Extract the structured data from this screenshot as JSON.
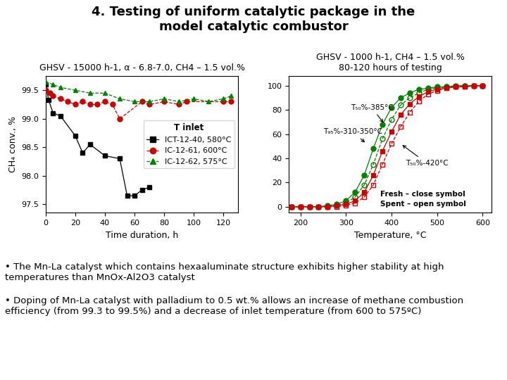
{
  "title": "4. Testing of uniform catalytic package in the\nmodel catalytic combustor",
  "annotations": [
    "• The Mn-La catalyst which contains hexaaluminate structure exhibits higher stability at high temperatures than MnOx-Al2O3 catalyst",
    "• Doping of Mn-La catalyst with palladium to 0.5 wt.% allows an increase of methane combustion efficiency (from 99.3 to 99.5%) and a decrease of inlet temperature (from 600 to 575ºC)"
  ],
  "chart_data": [
    {
      "type": "line",
      "subtitle": "GHSV - 15000 h-1, α - 6.8-7.0, CH4 – 1.5 vol.%",
      "x_label": "Time duration, h",
      "y_label": "CH₄ conv., %",
      "xlim": [
        0,
        130
      ],
      "ylim": [
        97.35,
        99.75
      ],
      "xticks": [
        0,
        20,
        40,
        60,
        80,
        100,
        120
      ],
      "yticks": [
        97.5,
        {
          "value": 98.0,
          "label": "98.0"
        },
        98.5,
        {
          "value": 99.0,
          "label": "99.0"
        },
        99.5
      ],
      "legend": "center right",
      "legend_title": "T inlet",
      "series": [
        {
          "name": "ICT-12-40, 580°C",
          "color": "black",
          "marker": "square",
          "line_style": "solid",
          "x": [
            0,
            2,
            5,
            10,
            20,
            25,
            30,
            40,
            50,
            55,
            60,
            65,
            70
          ],
          "values": [
            99.6,
            99.33,
            99.1,
            99.05,
            98.7,
            98.4,
            98.55,
            98.35,
            98.3,
            97.65,
            97.65,
            97.75,
            97.8
          ]
        },
        {
          "name": "IC-12-61, 600°C",
          "color": "#cc0000",
          "marker": "circle",
          "line_style": "dashed",
          "x": [
            0,
            3,
            5,
            10,
            15,
            20,
            25,
            30,
            35,
            40,
            45,
            50,
            65,
            70,
            80,
            90,
            95,
            120,
            125
          ],
          "values": [
            99.5,
            99.45,
            99.4,
            99.35,
            99.3,
            99.25,
            99.3,
            99.25,
            99.25,
            99.3,
            99.25,
            99.0,
            99.3,
            99.25,
            99.3,
            99.25,
            99.3,
            99.3,
            99.3
          ]
        },
        {
          "name": "IC-12-62, 575°C",
          "color": "#008000",
          "marker": "triangle",
          "line_style": "dashed",
          "x": [
            0,
            5,
            10,
            20,
            30,
            40,
            50,
            60,
            70,
            80,
            90,
            100,
            110,
            120,
            125
          ],
          "values": [
            99.65,
            99.6,
            99.55,
            99.5,
            99.45,
            99.45,
            99.35,
            99.3,
            99.3,
            99.35,
            99.3,
            99.35,
            99.3,
            99.35,
            99.4
          ]
        }
      ]
    },
    {
      "type": "line",
      "subtitle": "GHSV - 1000 h-1, CH4 – 1.5 vol.%\n80-120 hours of testing",
      "x_label": "Temperature, °C",
      "xlim": [
        175,
        620
      ],
      "ylim": [
        -5,
        108
      ],
      "xticks": [
        200,
        300,
        400,
        500,
        600
      ],
      "yticks": [
        0,
        20,
        40,
        60,
        80,
        100
      ],
      "x": [
        180,
        200,
        220,
        240,
        260,
        280,
        300,
        320,
        340,
        360,
        380,
        400,
        420,
        440,
        460,
        480,
        500,
        520,
        540,
        560,
        580,
        600
      ],
      "series": [
        {
          "color": "#008000",
          "marker": "circle",
          "line_style": "solid",
          "values": [
            0,
            0,
            0,
            0,
            1,
            2,
            5,
            12,
            26,
            48,
            68,
            82,
            90,
            94,
            97,
            98,
            99,
            99,
            100,
            100,
            100,
            100
          ]
        },
        {
          "color": "#008000",
          "marker": "open circle",
          "line_style": "dashed",
          "values": [
            0,
            0,
            0,
            0,
            0,
            1,
            3,
            8,
            18,
            35,
            56,
            72,
            84,
            90,
            94,
            97,
            98,
            99,
            99,
            100,
            100,
            100
          ]
        },
        {
          "color": "#cc0000",
          "marker": "square",
          "line_style": "solid",
          "values": [
            0,
            0,
            0,
            0,
            0,
            1,
            2,
            5,
            12,
            26,
            46,
            62,
            76,
            85,
            91,
            95,
            97,
            98,
            99,
            99,
            100,
            100
          ]
        },
        {
          "color": "#cc0000",
          "marker": "open square",
          "line_style": "dashed",
          "values": [
            0,
            0,
            0,
            0,
            0,
            0,
            1,
            3,
            8,
            18,
            35,
            52,
            66,
            78,
            87,
            93,
            96,
            98,
            99,
            99,
            100,
            100
          ]
        }
      ],
      "annotations": [
        {
          "text": "T₅₀%-385°C",
          "x": 385,
          "y": 68
        },
        {
          "text": "T₉₅%-310-350°C",
          "x": 345,
          "y": 52
        },
        {
          "text": "T₅₀%-420°C",
          "x": 420,
          "y": 52
        },
        {
          "text": "Fresh – close symbol"
        },
        {
          "text": "Spent – open symbol"
        }
      ]
    }
  ]
}
